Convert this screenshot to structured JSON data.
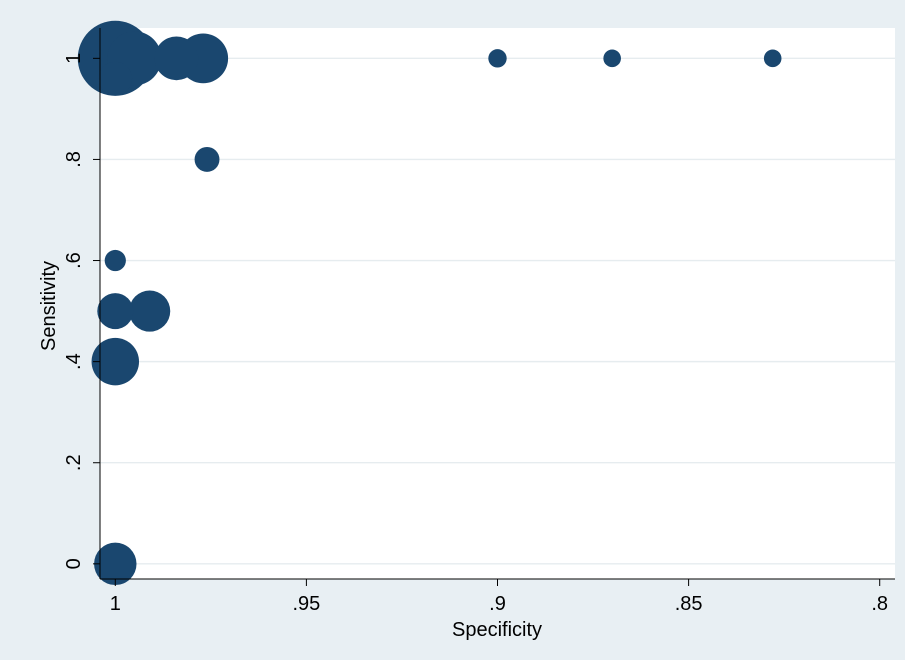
{
  "chart_data": {
    "type": "scatter",
    "title": "",
    "xlabel": "Specificity",
    "ylabel": "Sensitivity",
    "x_reversed": true,
    "xlim": [
      1.004,
      0.796
    ],
    "ylim": [
      -0.03,
      1.06
    ],
    "grid": true,
    "x_ticks": [
      1,
      0.95,
      0.9,
      0.85,
      0.8
    ],
    "x_tick_labels": [
      "1",
      ".95",
      ".9",
      ".85",
      ".8"
    ],
    "y_ticks": [
      0,
      0.2,
      0.4,
      0.6,
      0.8,
      1
    ],
    "y_tick_labels": [
      "0",
      ".2",
      ".4",
      ".6",
      ".8",
      "1"
    ],
    "marker_size_note": "bubble area proportional to study weight",
    "points": [
      {
        "x": 1.0,
        "y": 1.0,
        "size": 10.0
      },
      {
        "x": 0.995,
        "y": 1.0,
        "size": 5.2
      },
      {
        "x": 0.984,
        "y": 1.0,
        "size": 3.4
      },
      {
        "x": 0.977,
        "y": 1.0,
        "size": 4.4
      },
      {
        "x": 1.0,
        "y": 0.96,
        "size": 2.0
      },
      {
        "x": 0.9,
        "y": 1.0,
        "size": 0.6
      },
      {
        "x": 0.87,
        "y": 1.0,
        "size": 0.55
      },
      {
        "x": 0.828,
        "y": 1.0,
        "size": 0.55
      },
      {
        "x": 0.976,
        "y": 0.8,
        "size": 1.1
      },
      {
        "x": 1.0,
        "y": 0.6,
        "size": 0.8
      },
      {
        "x": 1.0,
        "y": 0.5,
        "size": 2.3
      },
      {
        "x": 0.991,
        "y": 0.5,
        "size": 3.0
      },
      {
        "x": 1.0,
        "y": 0.4,
        "size": 4.0
      },
      {
        "x": 1.0,
        "y": 0.0,
        "size": 3.2
      }
    ],
    "colors": {
      "outer_background": "#e8eff3",
      "plot_background": "#ffffff",
      "grid": "#e6ecef",
      "marker": "#1a476f",
      "axis": "#000000"
    }
  }
}
